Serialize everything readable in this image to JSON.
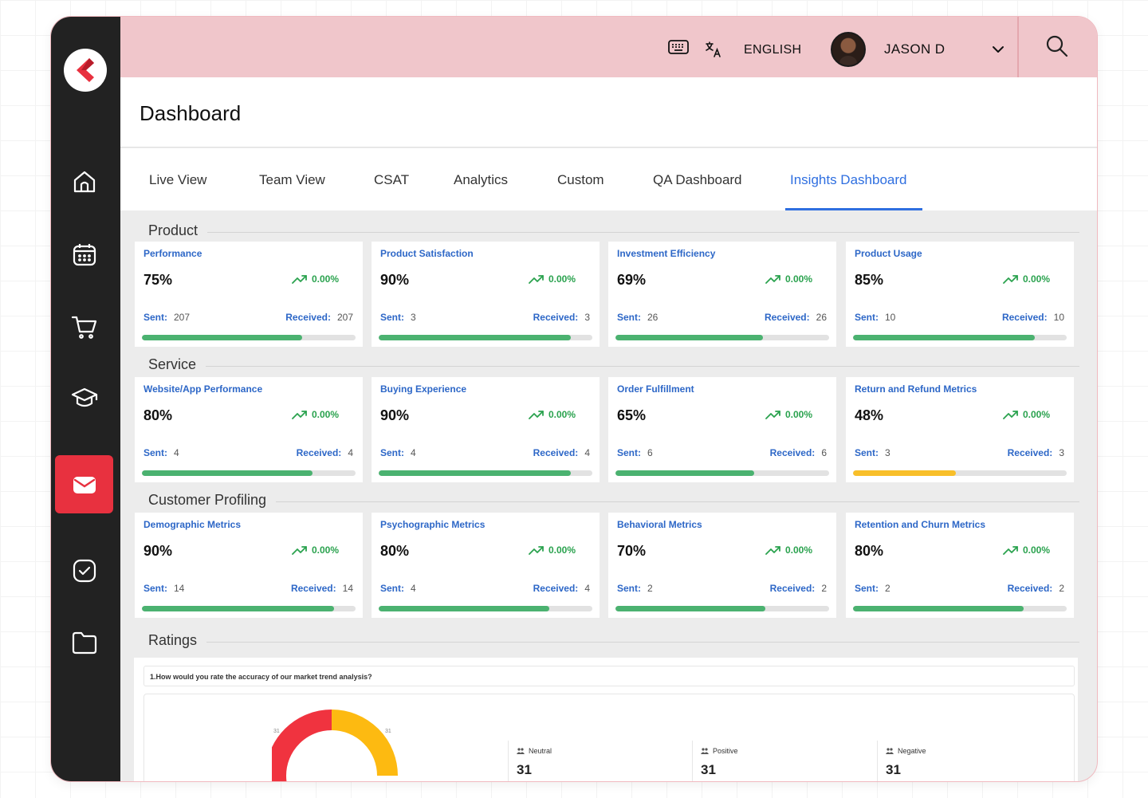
{
  "app": {
    "user_name": "JASON D",
    "language": "ENGLISH"
  },
  "header": {
    "title": "Dashboard"
  },
  "sidebar": {
    "items": [
      {
        "icon": "home-icon"
      },
      {
        "icon": "calendar-icon"
      },
      {
        "icon": "cart-icon"
      },
      {
        "icon": "graduation-cap-icon"
      },
      {
        "icon": "mail-icon",
        "active": true
      },
      {
        "icon": "check-square-icon"
      },
      {
        "icon": "folder-icon"
      }
    ]
  },
  "tabs": [
    {
      "label": "Live View"
    },
    {
      "label": "Team View"
    },
    {
      "label": "CSAT"
    },
    {
      "label": "Analytics"
    },
    {
      "label": "Custom"
    },
    {
      "label": "QA Dashboard"
    },
    {
      "label": "Insights Dashboard",
      "active": true
    }
  ],
  "labels": {
    "sent": "Sent:",
    "received": "Received:"
  },
  "sections": [
    {
      "title": "Product",
      "cards": [
        {
          "title": "Performance",
          "value": "75%",
          "trend": "0.00%",
          "sent": "207",
          "received": "207",
          "progress": 0.75,
          "color": "#4bb270"
        },
        {
          "title": "Product Satisfaction",
          "value": "90%",
          "trend": "0.00%",
          "sent": "3",
          "received": "3",
          "progress": 0.9,
          "color": "#4bb270"
        },
        {
          "title": "Investment Efficiency",
          "value": "69%",
          "trend": "0.00%",
          "sent": "26",
          "received": "26",
          "progress": 0.69,
          "color": "#4bb270"
        },
        {
          "title": "Product Usage",
          "value": "85%",
          "trend": "0.00%",
          "sent": "10",
          "received": "10",
          "progress": 0.85,
          "color": "#4bb270"
        }
      ]
    },
    {
      "title": "Service",
      "cards": [
        {
          "title": "Website/App Performance",
          "value": "80%",
          "trend": "0.00%",
          "sent": "4",
          "received": "4",
          "progress": 0.8,
          "color": "#4bb270"
        },
        {
          "title": "Buying Experience",
          "value": "90%",
          "trend": "0.00%",
          "sent": "4",
          "received": "4",
          "progress": 0.9,
          "color": "#4bb270"
        },
        {
          "title": "Order Fulfillment",
          "value": "65%",
          "trend": "0.00%",
          "sent": "6",
          "received": "6",
          "progress": 0.65,
          "color": "#4bb270"
        },
        {
          "title": "Return and Refund Metrics",
          "value": "48%",
          "trend": "0.00%",
          "sent": "3",
          "received": "3",
          "progress": 0.48,
          "color": "#f8bf2a"
        }
      ]
    },
    {
      "title": "Customer Profiling",
      "cards": [
        {
          "title": "Demographic Metrics",
          "value": "90%",
          "trend": "0.00%",
          "sent": "14",
          "received": "14",
          "progress": 0.9,
          "color": "#4bb270"
        },
        {
          "title": "Psychographic Metrics",
          "value": "80%",
          "trend": "0.00%",
          "sent": "4",
          "received": "4",
          "progress": 0.8,
          "color": "#4bb270"
        },
        {
          "title": "Behavioral Metrics",
          "value": "70%",
          "trend": "0.00%",
          "sent": "2",
          "received": "2",
          "progress": 0.7,
          "color": "#4bb270"
        },
        {
          "title": "Retention and Churn Metrics",
          "value": "80%",
          "trend": "0.00%",
          "sent": "2",
          "received": "2",
          "progress": 0.8,
          "color": "#4bb270"
        }
      ]
    }
  ],
  "ratings": {
    "title": "Ratings",
    "question": "1.How would you rate the accuracy of our market trend analysis?",
    "donut_labels": {
      "left": "31",
      "right": "31"
    },
    "donut_colors": {
      "red": "#f0333f",
      "yellow": "#fdba11"
    },
    "stats": [
      {
        "name": "Neutral",
        "value": "31"
      },
      {
        "name": "Positive",
        "value": "31"
      },
      {
        "name": "Negative",
        "value": "31"
      }
    ]
  }
}
